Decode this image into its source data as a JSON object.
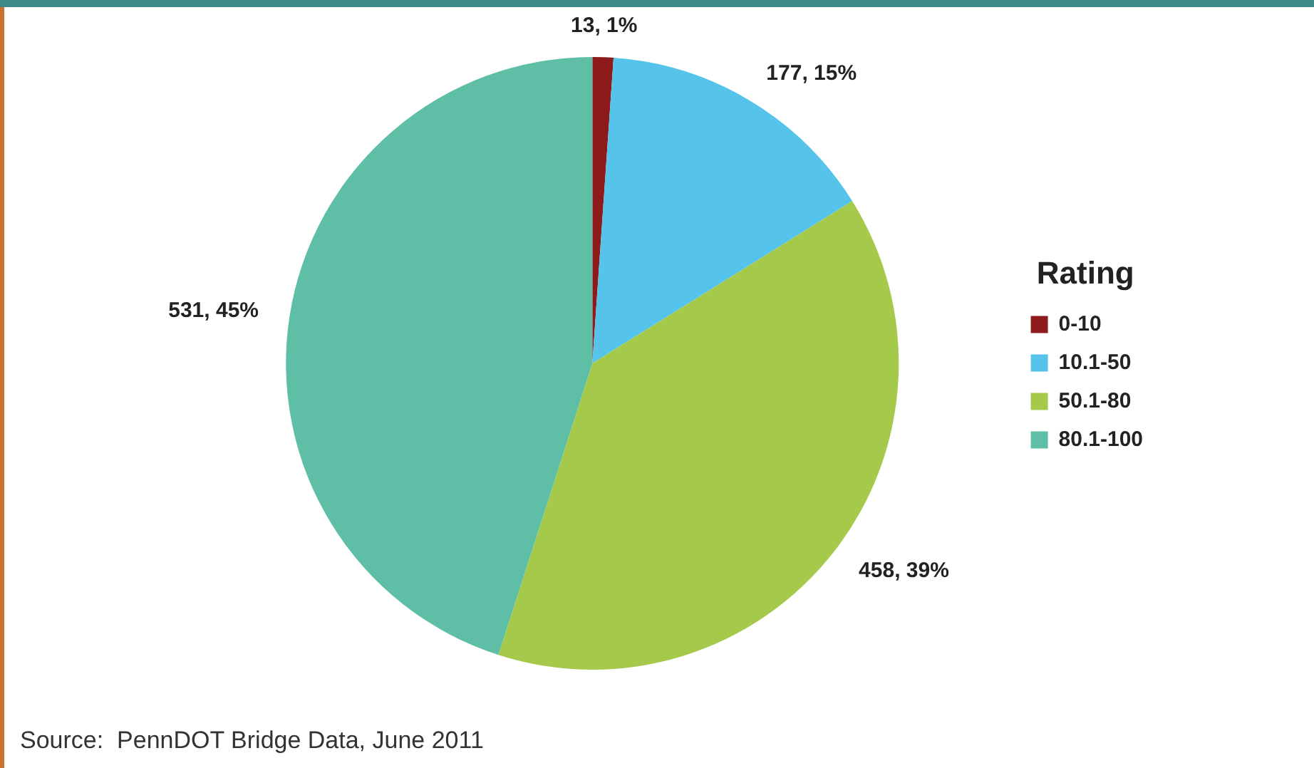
{
  "chart_data": {
    "type": "pie",
    "categories": [
      "0-10",
      "10.1-50",
      "50.1-80",
      "80.1-100"
    ],
    "values": [
      13,
      177,
      458,
      531
    ],
    "value_labels": [
      "13, 1%",
      "177, 15%",
      "458, 39%",
      "531, 45%"
    ],
    "colors": [
      "#8e1b1b",
      "#55c3ea",
      "#a5c94b",
      "#5ebfa6"
    ],
    "legend_title": "Rating",
    "legend": "right",
    "annotations": [
      "Source:  PennDOT Bridge Data, June 2011"
    ]
  }
}
